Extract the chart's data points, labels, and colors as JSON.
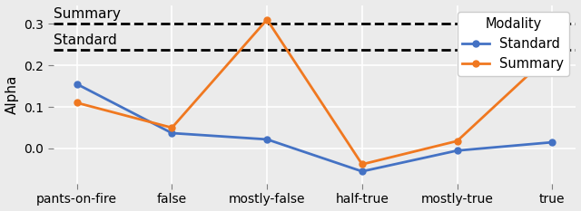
{
  "categories": [
    "pants-on-fire",
    "false",
    "mostly-false",
    "half-true",
    "mostly-true",
    "true"
  ],
  "standard_values": [
    0.155,
    0.037,
    0.022,
    -0.055,
    -0.005,
    0.015
  ],
  "summary_values": [
    0.11,
    0.05,
    0.31,
    -0.038,
    0.018,
    0.23
  ],
  "standard_hline": 0.237,
  "summary_hline": 0.3,
  "standard_color": "#4472c4",
  "summary_color": "#f07820",
  "ylabel": "Alpha",
  "ylim": [
    -0.085,
    0.345
  ],
  "yticks": [
    0.0,
    0.1,
    0.2,
    0.3
  ],
  "standard_label": "Standard",
  "summary_label": "Summary",
  "legend_title": "Modality",
  "hline_label_standard": "Standard",
  "hline_label_summary": "Summary",
  "plot_bg_color": "#ebebeb",
  "fig_bg_color": "#ebebeb",
  "grid_color": "#ffffff",
  "axis_fontsize": 11,
  "tick_fontsize": 10,
  "legend_fontsize": 10.5
}
